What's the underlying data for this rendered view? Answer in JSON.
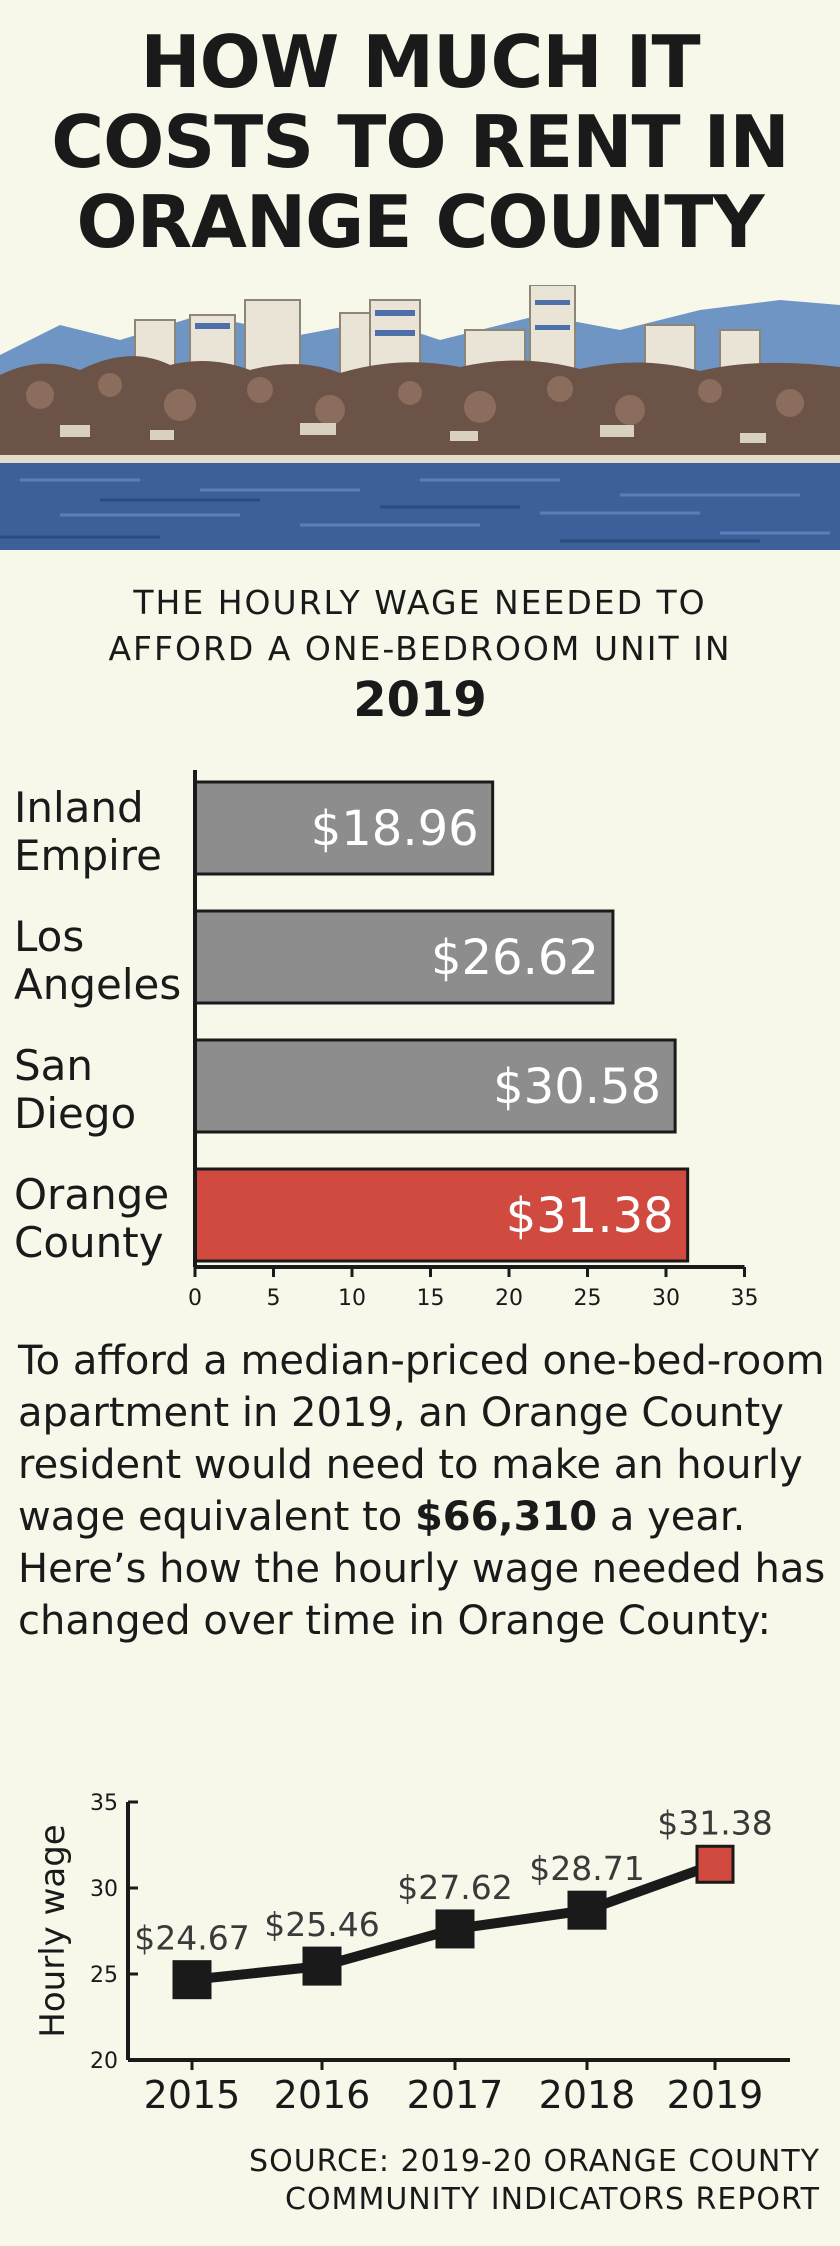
{
  "headline": {
    "line1": "HOW MUCH IT",
    "line2": "COSTS TO RENT IN",
    "line3": "ORANGE COUNTY"
  },
  "subhead": {
    "line1": "THE HOURLY WAGE NEEDED TO",
    "line2": "AFFORD A ONE-BEDROOM UNIT IN",
    "year": "2019"
  },
  "colors": {
    "gray_bar": "#8d8d8d",
    "highlight_bar": "#d14a3f",
    "ink": "#1a1a1a",
    "background": "#f7f7ea"
  },
  "paragraph": {
    "text_before": "To afford a median-priced one-bed-room apartment in 2019, an Orange County resident would need to make an hourly wage equivalent to ",
    "amount": "$66,310",
    "text_after": " a year. Here’s how the hourly wage needed has changed over time in Orange County:"
  },
  "source": {
    "line1": "SOURCE: 2019-20 ORANGE COUNTY",
    "line2": "COMMUNITY INDICATORS REPORT"
  },
  "chart_data": [
    {
      "type": "bar",
      "orientation": "horizontal",
      "title": "THE HOURLY WAGE NEEDED TO AFFORD A ONE-BEDROOM UNIT IN 2019",
      "categories": [
        {
          "line1": "Inland",
          "line2": "Empire"
        },
        {
          "line1": "Los",
          "line2": "Angeles"
        },
        {
          "line1": "San",
          "line2": "Diego"
        },
        {
          "line1": "Orange",
          "line2": "County"
        }
      ],
      "values": [
        18.96,
        26.62,
        30.58,
        31.38
      ],
      "value_labels": [
        "$18.96",
        "$26.62",
        "$30.58",
        "$31.38"
      ],
      "highlight_index": 3,
      "xlim": [
        0,
        35
      ],
      "xticks": [
        "0",
        "5",
        "10",
        "15",
        "20",
        "25",
        "30",
        "35"
      ],
      "grid": false
    },
    {
      "type": "line",
      "x": [
        "2015",
        "2016",
        "2017",
        "2018",
        "2019"
      ],
      "values": [
        24.67,
        25.46,
        27.62,
        28.71,
        31.38
      ],
      "value_labels": [
        "$24.67",
        "$25.46",
        "$27.62",
        "$28.71",
        "$31.38"
      ],
      "ylabel": "Hourly wage",
      "ylim": [
        20,
        35
      ],
      "yticks": [
        "20",
        "25",
        "30",
        "35"
      ],
      "highlight_index": 4,
      "grid": false
    }
  ]
}
